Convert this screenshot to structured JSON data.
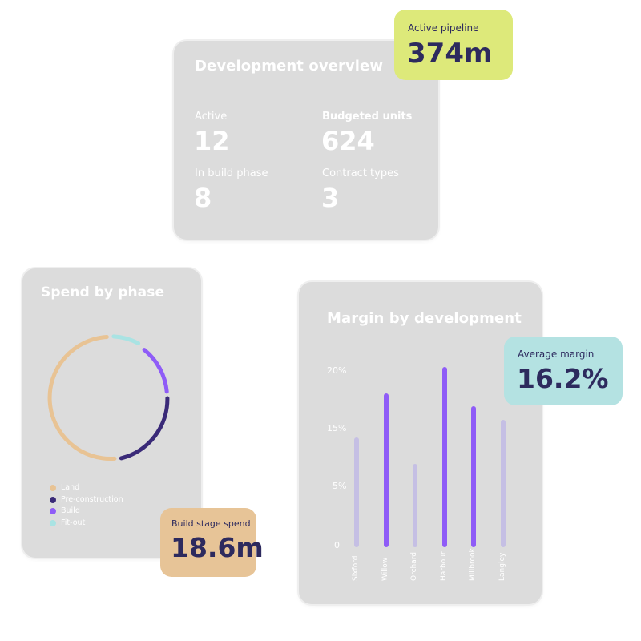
{
  "overview": {
    "title": "Development overview",
    "stats": [
      {
        "label": "Active",
        "value": "12"
      },
      {
        "label": "Budgeted units",
        "value": "624"
      },
      {
        "label": "In build phase",
        "value": "8"
      },
      {
        "label": "Contract types",
        "value": "3"
      }
    ]
  },
  "pipeline_pill": {
    "label": "Active pipeline",
    "value": "374m",
    "color": "#dde97a"
  },
  "spend": {
    "title": "Spend by phase",
    "legend": [
      {
        "label": "Land",
        "color": "#e8c394"
      },
      {
        "label": "Pre-construction",
        "color": "#3a2a78"
      },
      {
        "label": "Build",
        "color": "#8f5cf7"
      },
      {
        "label": "Fit-out",
        "color": "#a9e3e3"
      }
    ]
  },
  "build_pill": {
    "label": "Build stage spend",
    "value": "18.6m",
    "color": "#e7c497"
  },
  "margin": {
    "title": "Margin by development",
    "y_ticks": [
      "20%",
      "15%",
      "5%",
      "0"
    ]
  },
  "avg_pill": {
    "label": "Average margin",
    "value": "16.2%",
    "color": "#b4e2e2"
  },
  "chart_data": {
    "type": "bar",
    "title": "Margin by development",
    "categories": [
      "Sixford",
      "Willow",
      "Orchard",
      "Harbour",
      "Millbrook",
      "Langley"
    ],
    "values": [
      12.5,
      17.5,
      9.5,
      20.5,
      16.0,
      14.5
    ],
    "highlight": [
      false,
      true,
      false,
      true,
      true,
      false
    ],
    "colors": {
      "highlight": "#8f5cf7",
      "muted": "#c5bfe4"
    }
  }
}
